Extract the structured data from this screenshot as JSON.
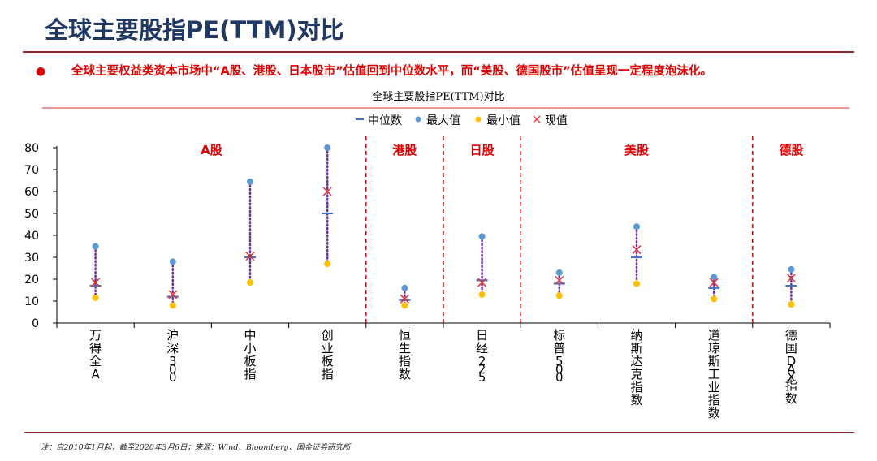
{
  "page": {
    "title": "全球主要股指PE(TTM)对比",
    "summary": "全球主要权益类资本市场中“A股、港股、日本股市”估值回到中位数水平，而“美股、德国股市”估值呈现一定程度泡沫化。",
    "footnote": "注：自2010年1月起，截至2020年3月6日；来源：Wind、Bloomberg、国金证券研究所"
  },
  "colors": {
    "title": "#1f3864",
    "accent_red": "#e00000",
    "median": "#4472c4",
    "max": "#5b9bd5",
    "min": "#ffc000",
    "current": "#e03030",
    "range_line": "#7030a0"
  },
  "chart_data": {
    "type": "scatter",
    "title": "全球主要股指PE(TTM)对比",
    "legend": {
      "position": "top",
      "entries": [
        "中位数",
        "最大值",
        "最小值",
        "现值"
      ]
    },
    "ylim": [
      0,
      80
    ],
    "yticks": [
      0,
      10,
      20,
      30,
      40,
      50,
      60,
      70,
      80
    ],
    "categories": [
      "万得全A",
      "沪深300",
      "中小板指",
      "创业板指",
      "恒生指数",
      "日经225",
      "标普500",
      "纳斯达克指数",
      "道琼斯工业指数",
      "德国DAX指数"
    ],
    "series": [
      {
        "name": "中位数",
        "values": [
          17,
          12,
          30,
          50,
          10.5,
          19.5,
          18,
          30,
          16,
          17
        ]
      },
      {
        "name": "最大值",
        "values": [
          35,
          28,
          64.5,
          80,
          16,
          39.5,
          23,
          44,
          21,
          24.5
        ]
      },
      {
        "name": "最小值",
        "values": [
          11.5,
          8,
          18.5,
          27,
          8,
          13,
          12.5,
          18,
          11,
          8.5
        ]
      },
      {
        "name": "现值",
        "values": [
          18.5,
          13,
          30.5,
          60,
          11,
          18.5,
          19.5,
          33.5,
          18.5,
          20.5
        ]
      }
    ],
    "groups": [
      {
        "label": "A股",
        "from": 0,
        "to": 3
      },
      {
        "label": "港股",
        "from": 4,
        "to": 4
      },
      {
        "label": "日股",
        "from": 5,
        "to": 5
      },
      {
        "label": "美股",
        "from": 6,
        "to": 8
      },
      {
        "label": "德股",
        "from": 9,
        "to": 9
      }
    ],
    "grid": false
  }
}
